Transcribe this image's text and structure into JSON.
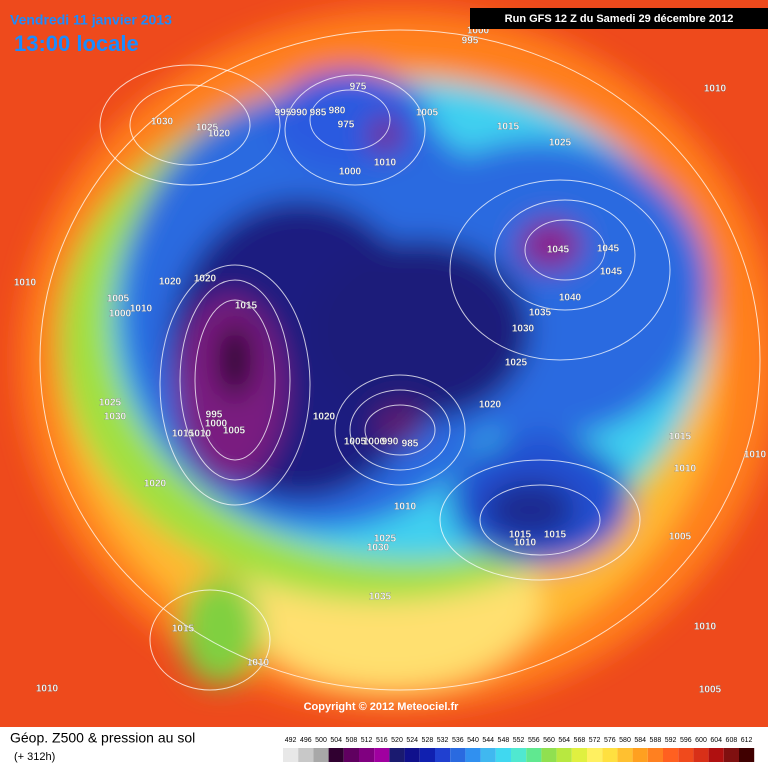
{
  "header": {
    "date": "Vendredi 11 janvier 2013",
    "time": "13:00 locale",
    "run": "Run GFS 12 Z du Samedi 29 décembre 2012"
  },
  "isobar_labels": [
    "1000",
    "995",
    "975",
    "995",
    "990",
    "985",
    "980",
    "975",
    "1005",
    "1015",
    "1025",
    "1010",
    "1030",
    "1025",
    "1020",
    "1010",
    "1000",
    "1045",
    "1045",
    "1045",
    "1040",
    "1035",
    "1030",
    "1025",
    "1020",
    "1020",
    "1020",
    "1015",
    "1005",
    "1000",
    "1010",
    "1010",
    "1025",
    "1030",
    "995",
    "1000",
    "1005",
    "1010",
    "1015",
    "1020",
    "1005",
    "1000",
    "990",
    "985",
    "1020",
    "1010",
    "1025",
    "1030",
    "1035",
    "1015",
    "1010",
    "1015",
    "1005",
    "1015",
    "1010",
    "1010",
    "1010",
    "1005",
    "1015",
    "1010",
    "1010"
  ],
  "copyright": "Copyright © 2012 Meteociel.fr",
  "legend": {
    "title": "Géop. Z500 & pression au sol",
    "lead_time": "(+ 312h)",
    "values": [
      "492",
      "496",
      "500",
      "504",
      "508",
      "512",
      "516",
      "520",
      "524",
      "528",
      "532",
      "536",
      "540",
      "544",
      "548",
      "552",
      "556",
      "560",
      "564",
      "568",
      "572",
      "576",
      "580",
      "584",
      "588",
      "592",
      "596",
      "600",
      "604",
      "608",
      "612"
    ]
  }
}
